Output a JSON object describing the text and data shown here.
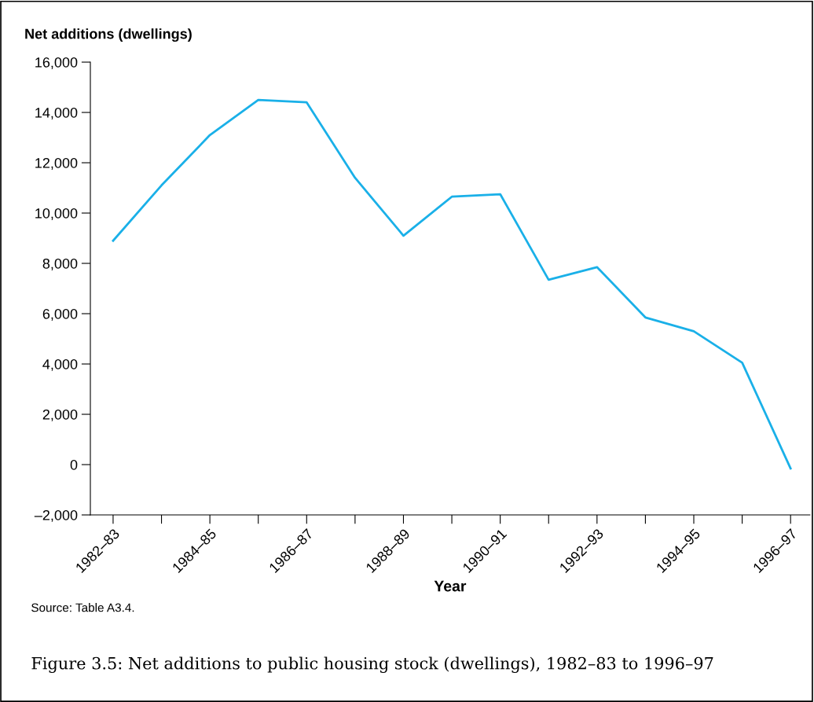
{
  "chart_data": {
    "type": "line",
    "title": "Figure 3.5: Net additions to public housing stock (dwellings), 1982–83 to 1996–97",
    "ylabel": "Net additions (dwellings)",
    "xlabel": "Year",
    "annotations": [
      "Source: Table A3.4."
    ],
    "categories": [
      "1982–83",
      null,
      "1984–85",
      null,
      "1986–87",
      null,
      "1988–89",
      null,
      "1990–91",
      null,
      "1992–93",
      null,
      "1994–95",
      null,
      "1996–97"
    ],
    "series": [
      {
        "color": "#1ab0e8",
        "values": [
          8900,
          11100,
          13100,
          14500,
          14400,
          11400,
          9100,
          10650,
          10750,
          7350,
          7850,
          5850,
          5300,
          4050,
          -150
        ]
      }
    ],
    "ylim": [
      -2000,
      16000
    ],
    "yticks": [
      {
        "value": -2000,
        "label": "–2,000"
      },
      0,
      {
        "value": 2000,
        "label": "2,000"
      },
      {
        "value": 4000,
        "label": "4,000"
      },
      {
        "value": 6000,
        "label": "6,000"
      },
      {
        "value": 8000,
        "label": "8,000"
      },
      {
        "value": 10000,
        "label": "10,000"
      },
      {
        "value": 12000,
        "label": "12,000"
      },
      {
        "value": 14000,
        "label": "14,000"
      },
      {
        "value": 16000,
        "label": "16,000"
      }
    ],
    "grid": false,
    "marker": "none",
    "line_style": "solid"
  }
}
